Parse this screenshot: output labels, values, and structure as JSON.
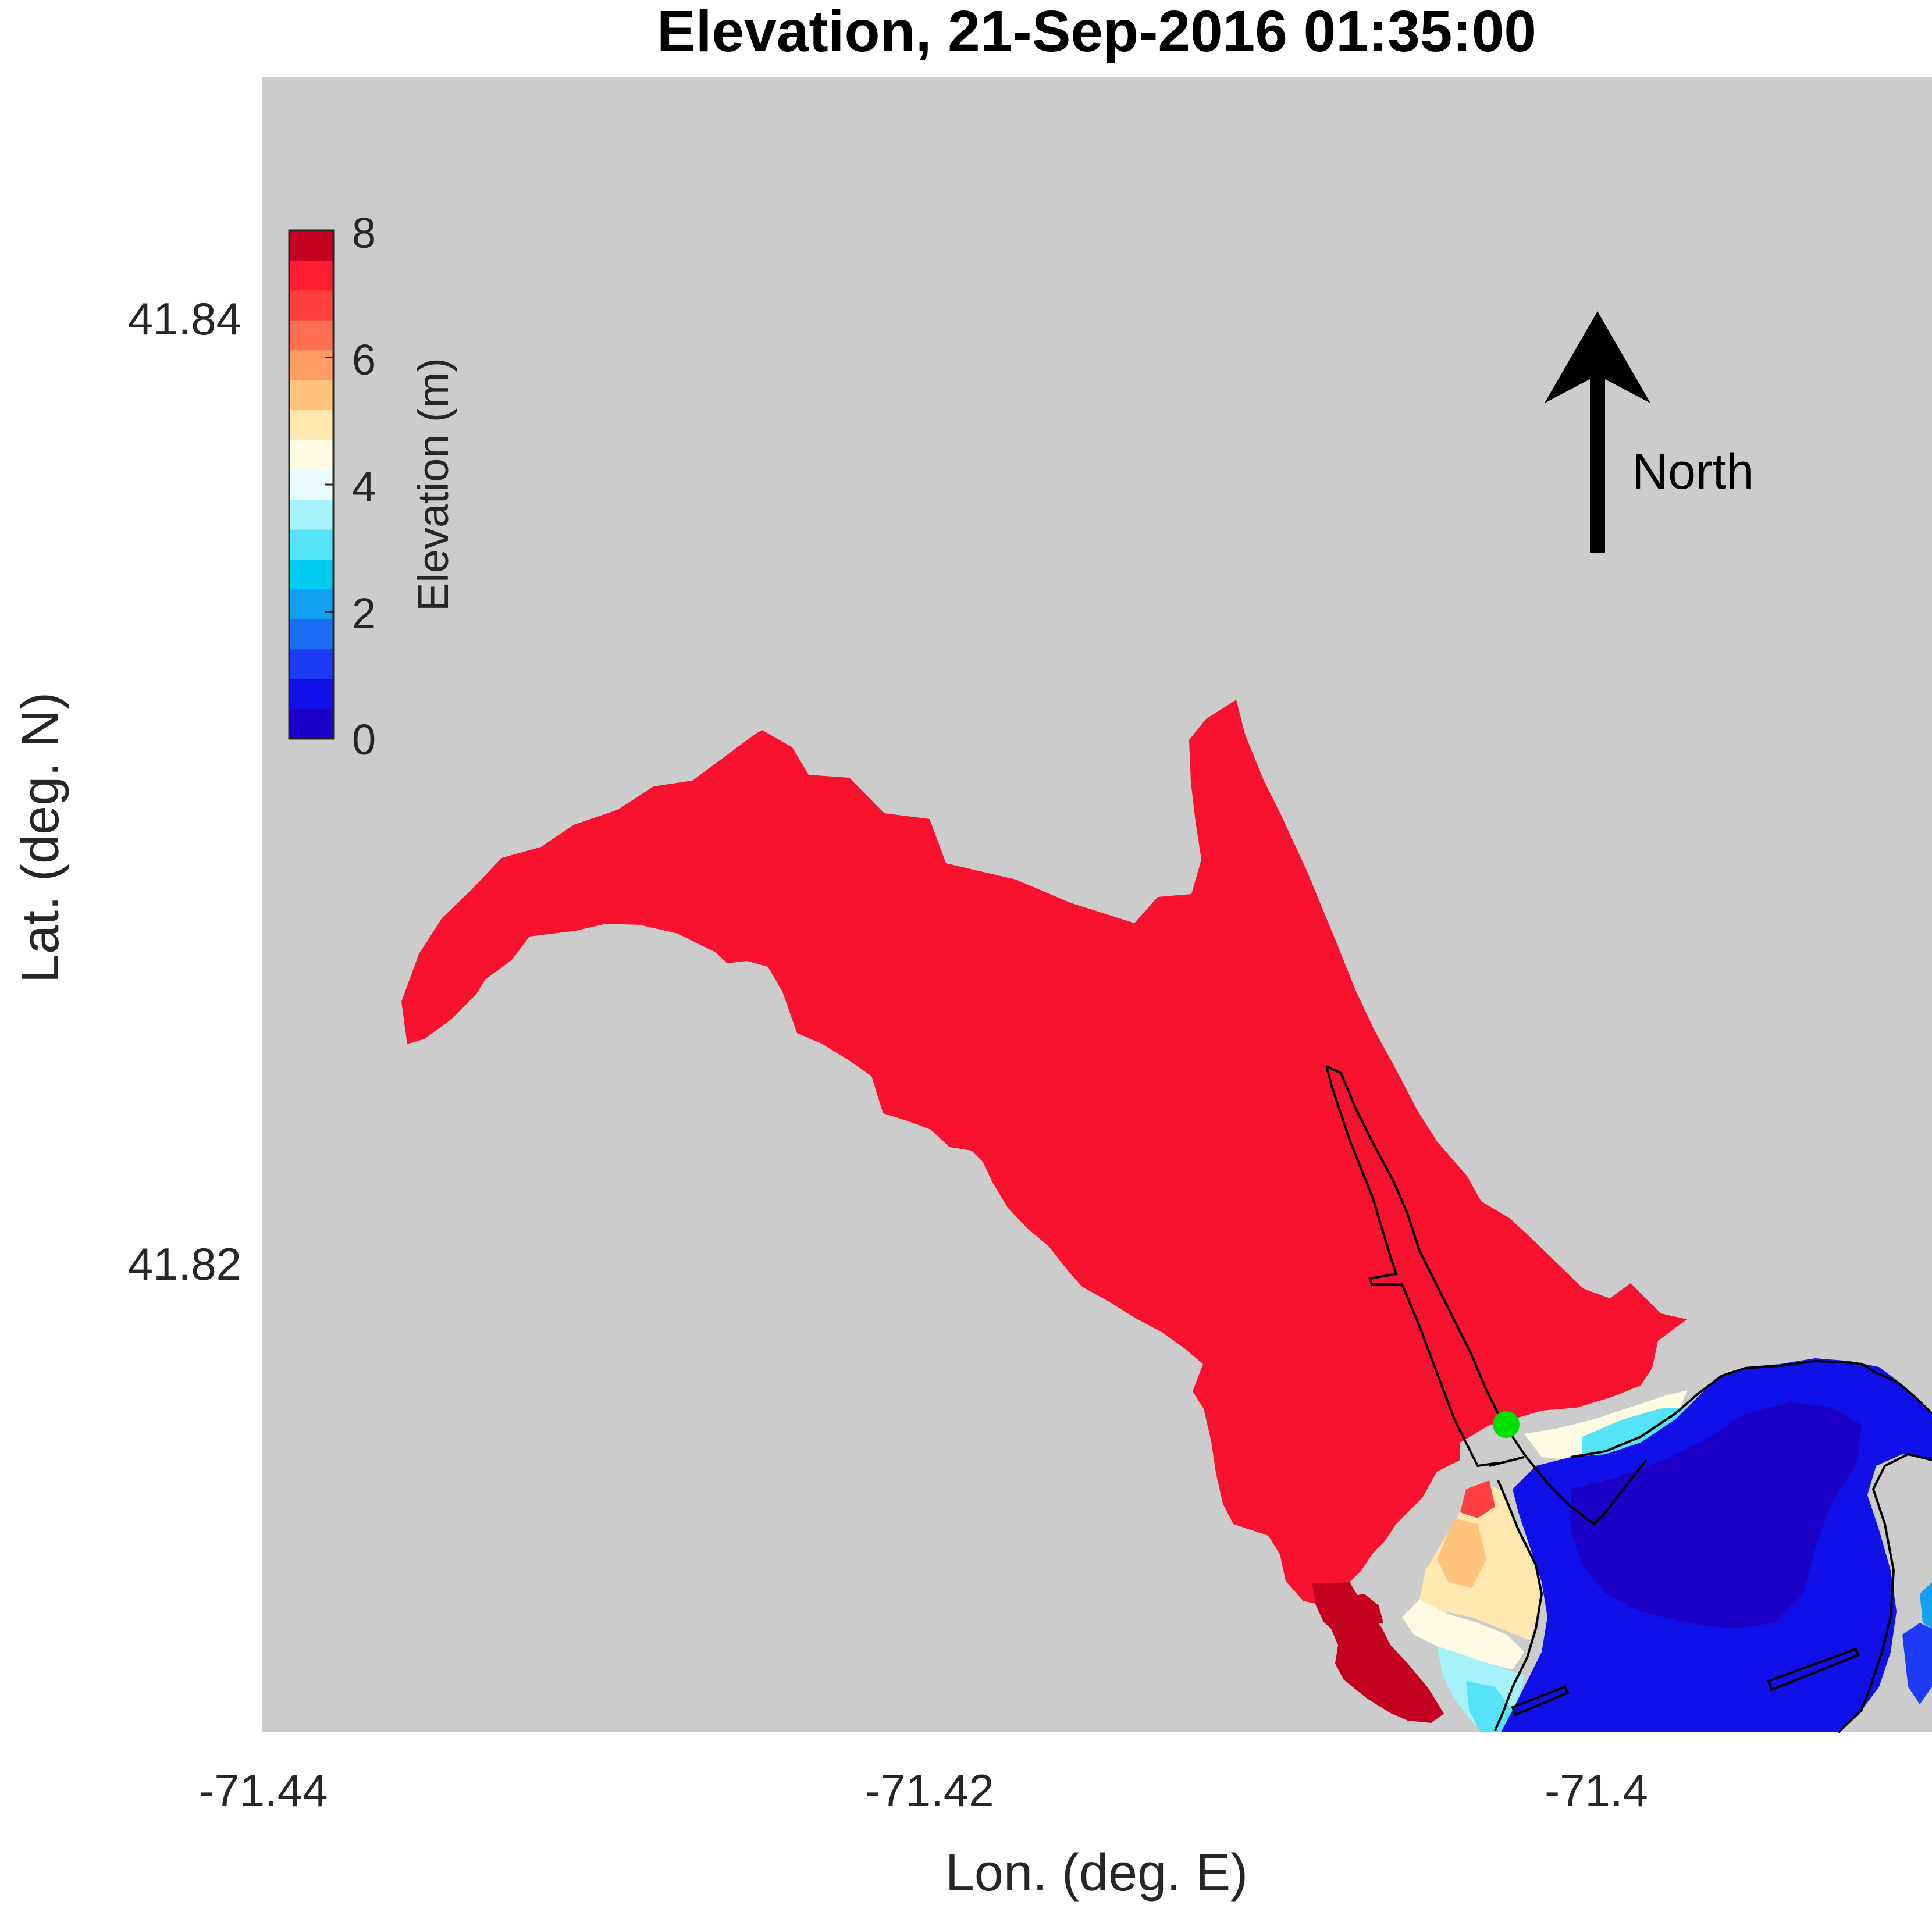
{
  "title": "Elevation, 21-Sep-2016 01:35:00",
  "xlabel": "Lon. (deg. E)",
  "ylabel": "Lat. (deg. N)",
  "x_ticks": [
    "-71.44",
    "-71.42",
    "-71.4"
  ],
  "y_ticks": [
    "41.84",
    "41.82"
  ],
  "colorbar": {
    "label": "Elevation (m)",
    "ticks": [
      "0",
      "2",
      "4",
      "6",
      "8"
    ],
    "range": [
      0,
      8
    ],
    "colors": [
      "#1d00c8",
      "#1010e8",
      "#1e3cf5",
      "#1a6cf5",
      "#12a0f0",
      "#00ccf0",
      "#55e3f7",
      "#a5f2fb",
      "#e8fbff",
      "#fffbe3",
      "#ffe7b0",
      "#ffc37b",
      "#ff9b63",
      "#ff6f50",
      "#ff3f40",
      "#fd1d30",
      "#c30020"
    ]
  },
  "north_label": "North",
  "colors": {
    "land": "#cccccc",
    "river": "#f91230",
    "channel_dark": "#c30020",
    "bay_deep": "#1d00c8",
    "bay": "#1010e8",
    "marker": "#00e000"
  },
  "marker": {
    "label": "",
    "color": "#00e000"
  },
  "map_extent": {
    "lon": [
      -71.44,
      -71.3905
    ],
    "lat": [
      41.8105,
      41.8455
    ]
  }
}
